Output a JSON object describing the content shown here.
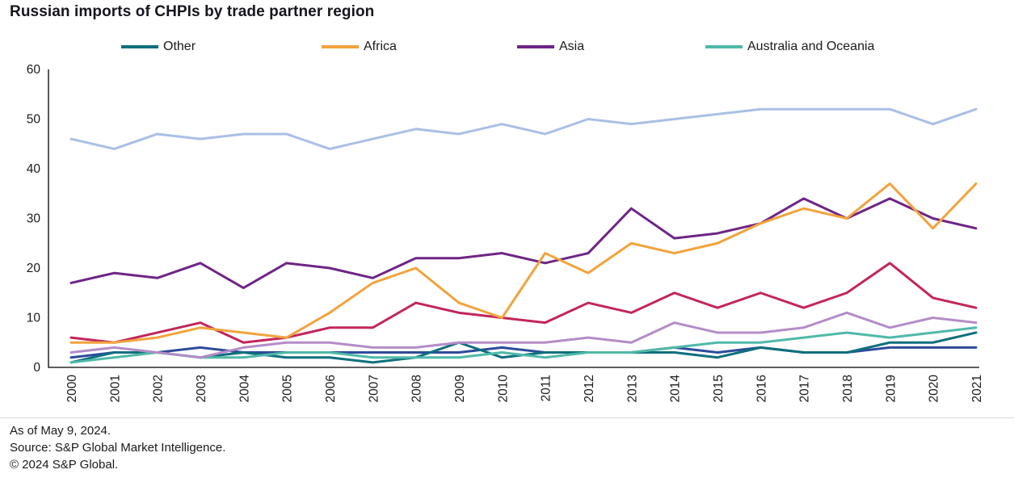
{
  "title": "Russian imports of CHPIs by trade partner region",
  "legend": {
    "items": [
      {
        "label": "Other",
        "color": "#0E6F7D"
      },
      {
        "label": "Africa",
        "color": "#F2A33C"
      },
      {
        "label": "Asia",
        "color": "#6E2585"
      },
      {
        "label": "Australia and Oceania",
        "color": "#4FB9A8"
      }
    ]
  },
  "footer": {
    "as_of": "As of May 9, 2024.",
    "source": "Source: S&P Global Market Intelligence.",
    "copyright": "© 2024 S&P Global."
  },
  "chart_data": {
    "type": "line",
    "title": "Russian imports of CHPIs by trade partner region",
    "x": [
      2000,
      2001,
      2002,
      2003,
      2004,
      2005,
      2006,
      2007,
      2008,
      2009,
      2010,
      2011,
      2012,
      2013,
      2014,
      2015,
      2016,
      2017,
      2018,
      2019,
      2020,
      2021
    ],
    "ylim": [
      0,
      60
    ],
    "yticks": [
      0,
      10,
      20,
      30,
      40,
      50,
      60
    ],
    "grid": false,
    "legend_position": "top",
    "series": [
      {
        "name": "unlabeled light blue",
        "in_legend": false,
        "color": "#AABFE6",
        "values": [
          46,
          44,
          47,
          46,
          47,
          47,
          44,
          46,
          48,
          47,
          49,
          47,
          50,
          49,
          50,
          51,
          52,
          52,
          52,
          52,
          49,
          52
        ]
      },
      {
        "name": "unlabeled dark blue",
        "in_legend": false,
        "color": "#2E4B9B",
        "values": [
          2,
          3,
          3,
          4,
          3,
          3,
          3,
          3,
          3,
          3,
          4,
          3,
          3,
          3,
          4,
          3,
          4,
          3,
          3,
          4,
          4,
          4
        ]
      },
      {
        "name": "Other",
        "in_legend": true,
        "color": "#0E6F7D",
        "values": [
          1,
          3,
          3,
          2,
          3,
          2,
          2,
          1,
          2,
          5,
          2,
          3,
          3,
          3,
          3,
          2,
          4,
          3,
          3,
          5,
          5,
          7
        ]
      },
      {
        "name": "Australia and Oceania",
        "in_legend": true,
        "color": "#4FB9A8",
        "values": [
          1,
          2,
          3,
          2,
          2,
          3,
          3,
          2,
          2,
          2,
          3,
          2,
          3,
          3,
          4,
          5,
          5,
          6,
          7,
          6,
          7,
          8
        ]
      },
      {
        "name": "unlabeled lavender",
        "in_legend": false,
        "color": "#B48CC8",
        "values": [
          3,
          4,
          3,
          2,
          4,
          5,
          5,
          4,
          4,
          5,
          5,
          5,
          6,
          5,
          9,
          7,
          7,
          8,
          11,
          8,
          10,
          9
        ]
      },
      {
        "name": "unlabeled crimson",
        "in_legend": false,
        "color": "#C3255B",
        "values": [
          6,
          5,
          7,
          9,
          5,
          6,
          8,
          8,
          13,
          11,
          10,
          9,
          13,
          11,
          15,
          12,
          15,
          12,
          15,
          21,
          14,
          12
        ]
      },
      {
        "name": "Asia",
        "in_legend": true,
        "color": "#6E2585",
        "values": [
          17,
          19,
          18,
          21,
          16,
          21,
          20,
          18,
          22,
          22,
          23,
          21,
          23,
          32,
          26,
          27,
          29,
          34,
          30,
          34,
          30,
          28
        ]
      },
      {
        "name": "Africa",
        "in_legend": true,
        "color": "#F2A33C",
        "values": [
          5,
          5,
          6,
          8,
          7,
          6,
          11,
          17,
          20,
          13,
          10,
          23,
          19,
          25,
          23,
          25,
          29,
          32,
          30,
          37,
          28,
          37
        ]
      }
    ]
  }
}
